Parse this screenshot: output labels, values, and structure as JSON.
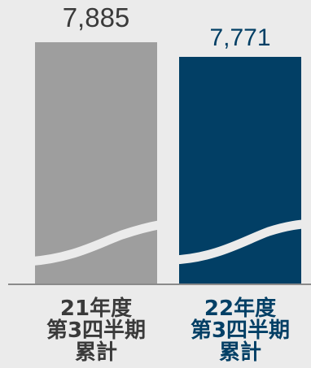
{
  "chart_data": {
    "type": "bar",
    "title": "",
    "xlabel": "",
    "ylabel": "",
    "categories": [
      [
        "21年度",
        "第3四半期",
        "累計"
      ],
      [
        "22年度",
        "第3四半期",
        "累計"
      ]
    ],
    "values": [
      7885,
      7771
    ],
    "value_labels": [
      "7,885",
      "7,771"
    ],
    "axis_break": true,
    "grid": false,
    "legend": "none"
  },
  "colors": {
    "background": "#ebebeb",
    "bars": [
      "#9e9e9e",
      "#023f65"
    ],
    "labels": [
      "#3a3a3a",
      "#023f65"
    ],
    "break_band": "#ebebeb",
    "baseline": "#8a8a8a"
  }
}
